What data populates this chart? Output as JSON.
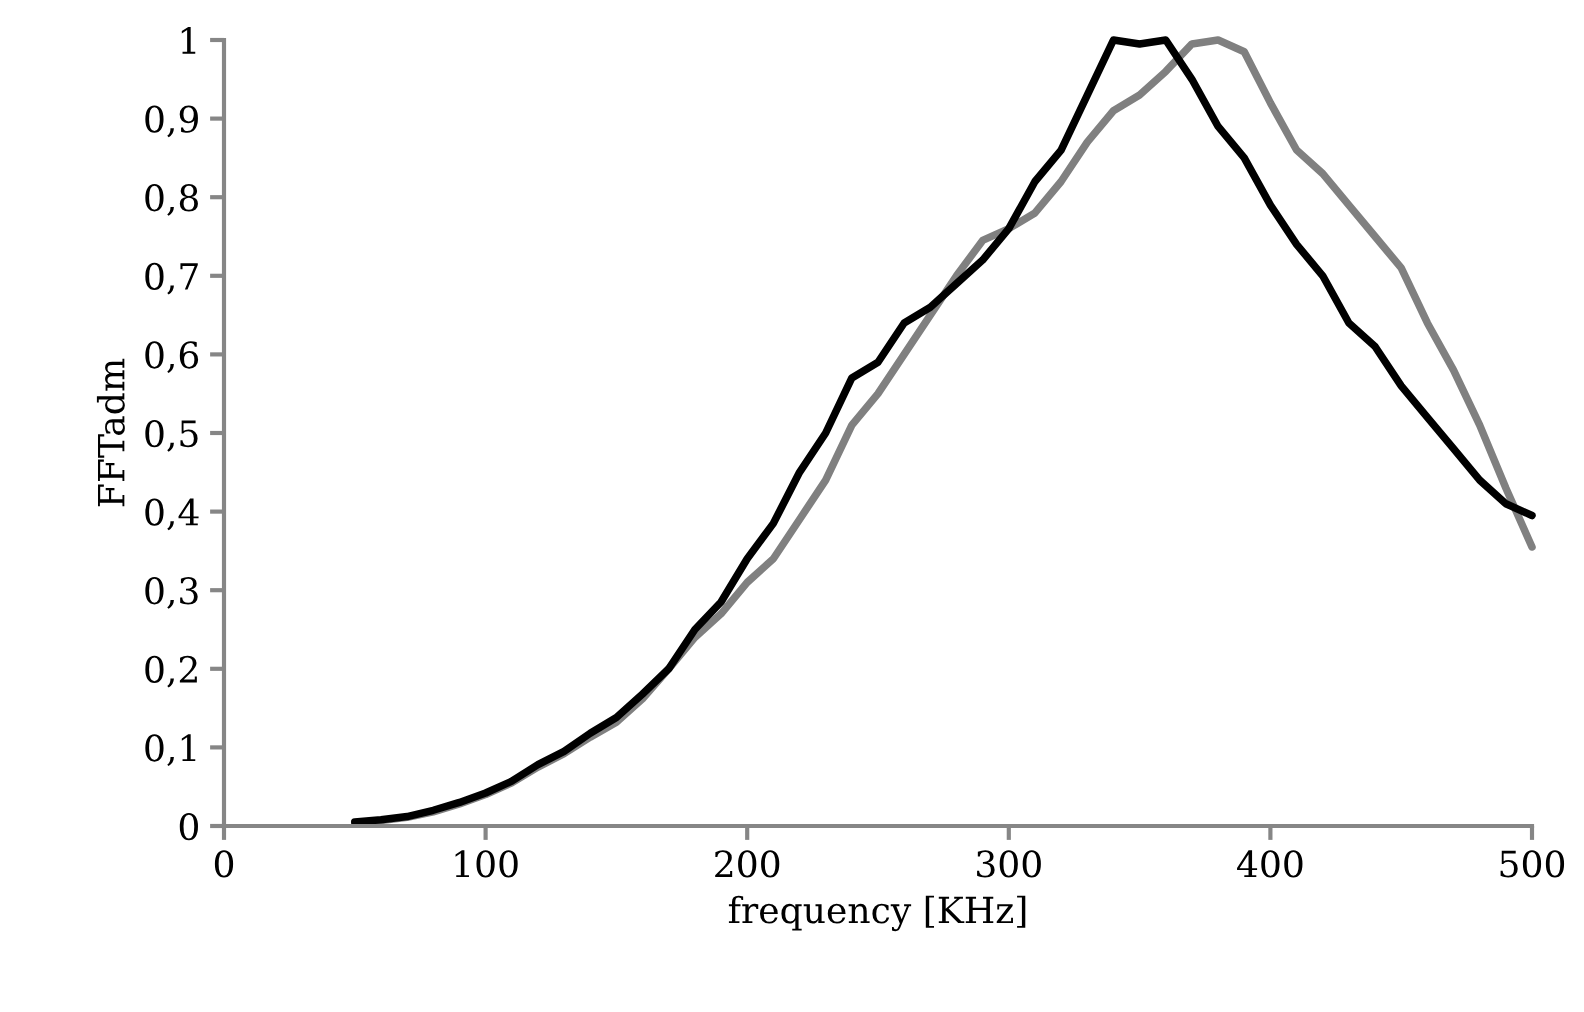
{
  "chart_data": {
    "type": "line",
    "xlabel": "frequency [KHz]",
    "ylabel": "FFTadm",
    "xlim": [
      0,
      500
    ],
    "xticks": [
      0,
      100,
      200,
      300,
      400,
      500
    ],
    "ylim": [
      0,
      1
    ],
    "yticks": [
      0,
      {
        "value": 0.1,
        "label": "0,1"
      },
      {
        "value": 0.2,
        "label": "0,2"
      },
      {
        "value": 0.3,
        "label": "0,3"
      },
      {
        "value": 0.4,
        "label": "0,4"
      },
      {
        "value": 0.5,
        "label": "0,5"
      },
      {
        "value": 0.6,
        "label": "0,6"
      },
      {
        "value": 0.7,
        "label": "0,7"
      },
      {
        "value": 0.8,
        "label": "0,8"
      },
      {
        "value": 0.9,
        "label": "0,9"
      },
      1
    ],
    "grid": false,
    "legend": false,
    "line_style": "solid",
    "x": [
      50,
      60,
      70,
      80,
      90,
      100,
      110,
      120,
      130,
      140,
      150,
      160,
      170,
      180,
      190,
      200,
      210,
      220,
      230,
      240,
      250,
      260,
      270,
      280,
      290,
      300,
      310,
      320,
      330,
      340,
      350,
      360,
      370,
      380,
      390,
      400,
      410,
      420,
      430,
      440,
      450,
      460,
      470,
      480,
      490,
      500
    ],
    "series": [
      {
        "color": "#808080",
        "values": [
          0.004,
          0.007,
          0.011,
          0.018,
          0.028,
          0.04,
          0.055,
          0.075,
          0.092,
          0.113,
          0.132,
          0.162,
          0.2,
          0.24,
          0.27,
          0.31,
          0.34,
          0.39,
          0.44,
          0.51,
          0.55,
          0.6,
          0.65,
          0.7,
          0.745,
          0.76,
          0.78,
          0.82,
          0.87,
          0.91,
          0.93,
          0.96,
          0.995,
          1.0,
          0.985,
          0.92,
          0.86,
          0.83,
          0.79,
          0.75,
          0.71,
          0.64,
          0.58,
          0.51,
          0.43,
          0.355
        ]
      },
      {
        "color": "#000000",
        "values": [
          0.005,
          0.008,
          0.012,
          0.02,
          0.03,
          0.042,
          0.057,
          0.078,
          0.095,
          0.118,
          0.138,
          0.168,
          0.2,
          0.25,
          0.285,
          0.34,
          0.385,
          0.45,
          0.5,
          0.57,
          0.59,
          0.64,
          0.66,
          0.69,
          0.72,
          0.76,
          0.82,
          0.86,
          0.93,
          1.0,
          0.995,
          1.0,
          0.95,
          0.89,
          0.85,
          0.79,
          0.74,
          0.7,
          0.64,
          0.61,
          0.56,
          0.52,
          0.48,
          0.44,
          0.41,
          0.395
        ]
      }
    ]
  }
}
